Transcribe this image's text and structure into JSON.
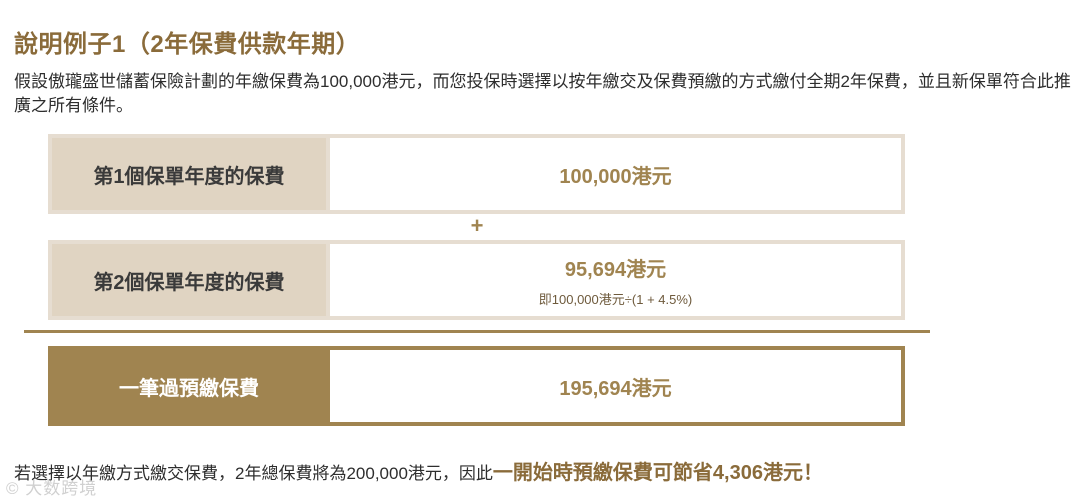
{
  "title": "說明例子1（2年保費供款年期）",
  "intro": "假設傲瓏盛世儲蓄保險計劃的年繳保費為100,000港元，而您投保時選擇以按年繳交及保費預繳的方式繳付全期2年保費，並且新保單符合此推廣之所有條件。",
  "rows": [
    {
      "label": "第1個保單年度的保費",
      "value": "100,000港元",
      "sub": ""
    },
    {
      "label": "第2個保單年度的保費",
      "value": "95,694港元",
      "sub": "即100,000港元÷(1 + 4.5%)"
    },
    {
      "label": "一筆過預繳保費",
      "value": "195,694港元",
      "sub": ""
    }
  ],
  "plus_symbol": "+",
  "footer": {
    "text": "若選擇以年繳方式繳交保費，2年總保費將為200,000港元，因此",
    "highlight": "一開始時預繳保費可節省4,306港元！"
  },
  "watermark": "© 大数跨境",
  "colors": {
    "accent": "#8a6b3a",
    "label_bg": "#e0d4c2",
    "total_bg": "#a08450"
  }
}
